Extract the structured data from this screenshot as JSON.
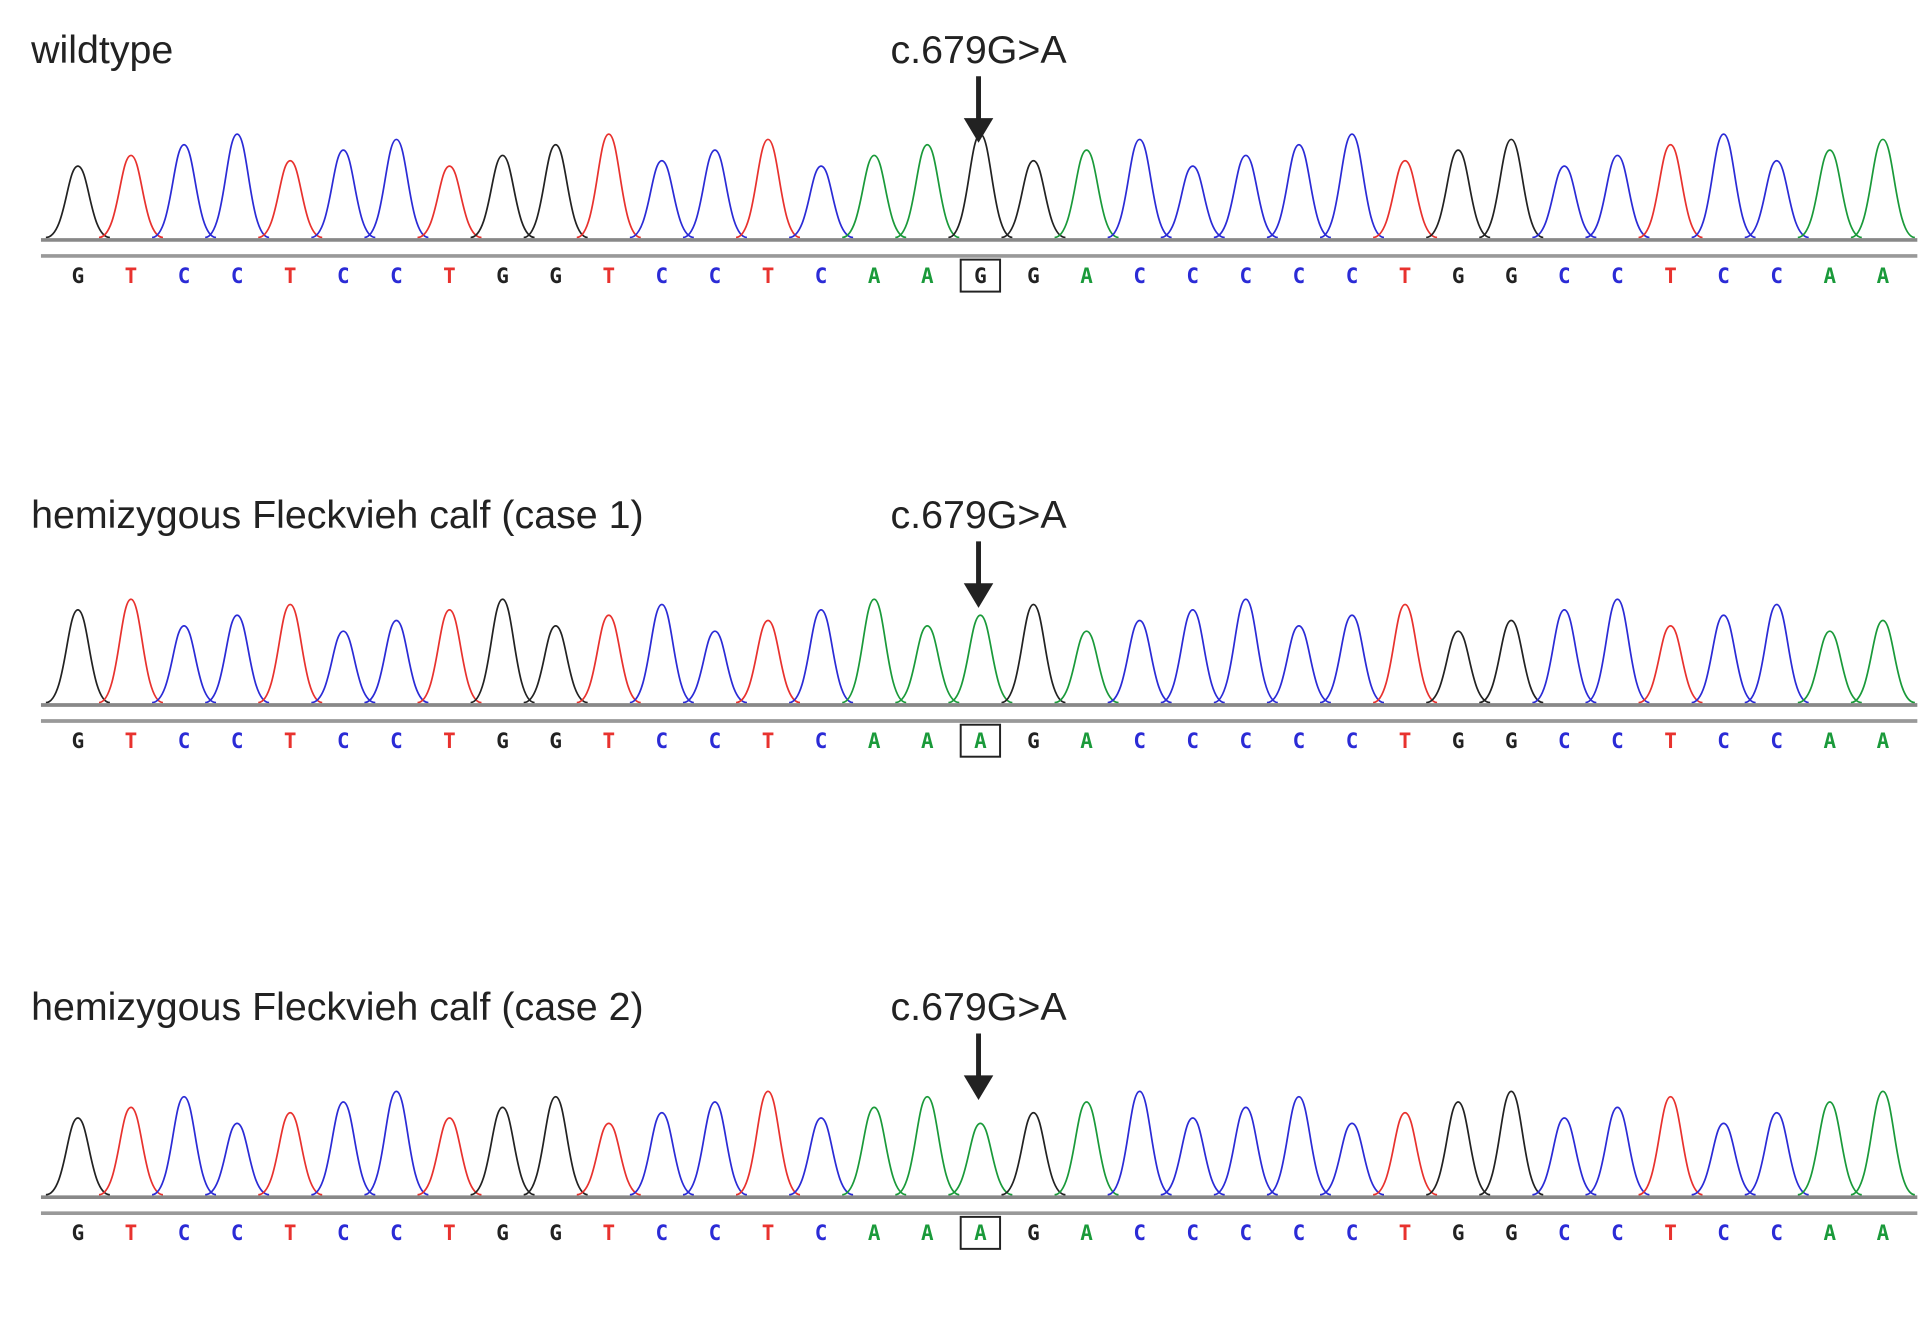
{
  "base_colors": {
    "G": "#222222",
    "T": "#e8322e",
    "C": "#2b2bd6",
    "A": "#1a9a3a"
  },
  "panels": [
    {
      "title": "wildtype",
      "mutation": "c.679G>A",
      "boxed_base": 17,
      "bases": [
        "G",
        "T",
        "C",
        "C",
        "T",
        "C",
        "C",
        "T",
        "G",
        "G",
        "T",
        "C",
        "C",
        "T",
        "C",
        "A",
        "A",
        "G",
        "G",
        "A",
        "C",
        "C",
        "C",
        "C",
        "C",
        "T",
        "G",
        "G",
        "C",
        "C",
        "T",
        "C",
        "C",
        "A",
        "A"
      ]
    },
    {
      "title": "hemizygous Fleckvieh calf (case 1)",
      "mutation": "c.679G>A",
      "boxed_base": 17,
      "bases": [
        "G",
        "T",
        "C",
        "C",
        "T",
        "C",
        "C",
        "T",
        "G",
        "G",
        "T",
        "C",
        "C",
        "T",
        "C",
        "A",
        "A",
        "A",
        "G",
        "A",
        "C",
        "C",
        "C",
        "C",
        "C",
        "T",
        "G",
        "G",
        "C",
        "C",
        "T",
        "C",
        "C",
        "A",
        "A"
      ]
    },
    {
      "title": "hemizygous Fleckvieh calf (case 2)",
      "mutation": "c.679G>A",
      "boxed_base": 17,
      "bases": [
        "G",
        "T",
        "C",
        "C",
        "T",
        "C",
        "C",
        "T",
        "G",
        "G",
        "T",
        "C",
        "C",
        "T",
        "C",
        "A",
        "A",
        "A",
        "G",
        "A",
        "C",
        "C",
        "C",
        "C",
        "C",
        "T",
        "G",
        "G",
        "C",
        "C",
        "T",
        "C",
        "C",
        "A",
        "A"
      ]
    }
  ]
}
